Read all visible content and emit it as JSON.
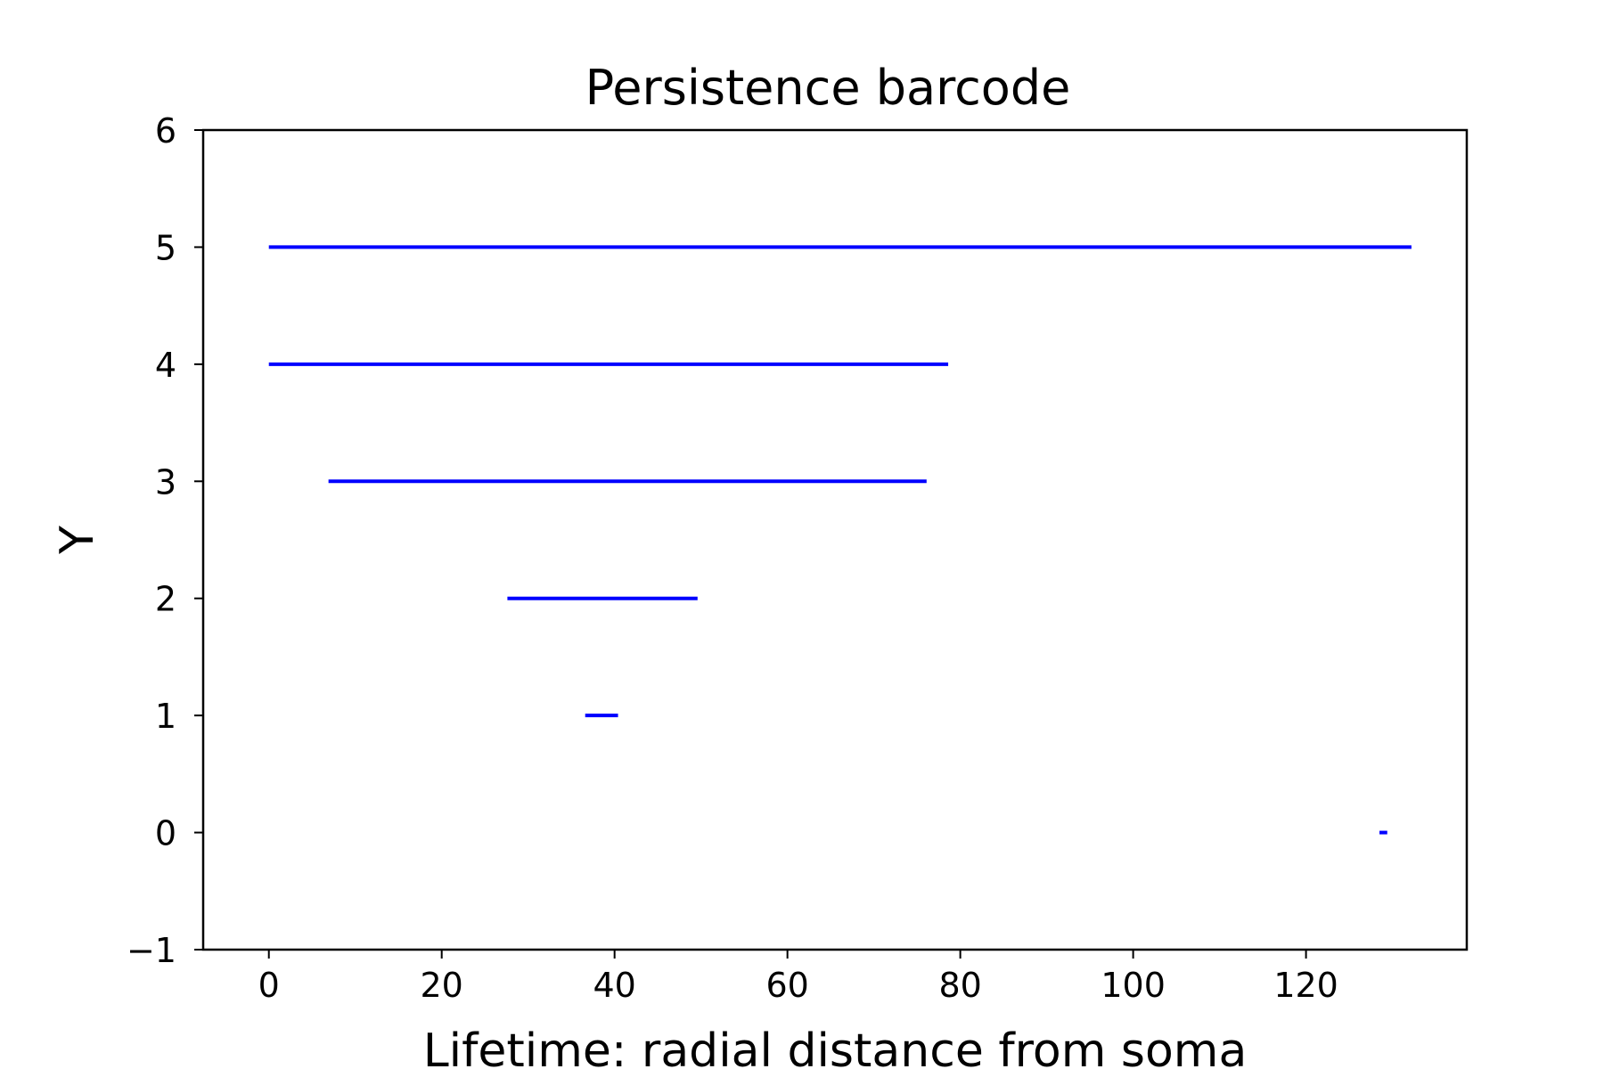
{
  "chart_data": {
    "type": "barcode",
    "title": "Persistence barcode",
    "xlabel": "Lifetime: radial distance from soma",
    "ylabel": "Y",
    "xlim": [
      -7.6,
      138.6
    ],
    "ylim": [
      -1,
      6
    ],
    "x_ticks": [
      0,
      20,
      40,
      60,
      80,
      100,
      120
    ],
    "x_tick_labels": [
      "0",
      "20",
      "40",
      "60",
      "80",
      "100",
      "120"
    ],
    "y_ticks": [
      -1,
      0,
      1,
      2,
      3,
      4,
      5,
      6
    ],
    "y_tick_labels": [
      "−1",
      "0",
      "1",
      "2",
      "3",
      "4",
      "5",
      "6"
    ],
    "grid": false,
    "color": "#0000ff",
    "bars": [
      {
        "y": 5,
        "start": 0.0,
        "end": 132.2
      },
      {
        "y": 4,
        "start": 0.0,
        "end": 78.6
      },
      {
        "y": 3,
        "start": 6.9,
        "end": 76.1
      },
      {
        "y": 2,
        "start": 27.6,
        "end": 49.6
      },
      {
        "y": 1,
        "start": 36.6,
        "end": 40.4
      },
      {
        "y": 0,
        "start": 128.5,
        "end": 129.4
      }
    ]
  }
}
